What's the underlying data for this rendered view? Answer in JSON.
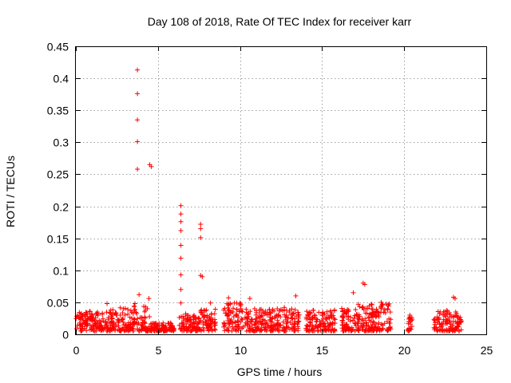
{
  "chart_data": {
    "type": "scatter",
    "title": "Day 108 of 2018, Rate Of TEC Index for receiver karr",
    "xlabel": "GPS time / hours",
    "ylabel": "ROTI / TECUs",
    "xlim": [
      0,
      25
    ],
    "ylim": [
      0,
      0.45
    ],
    "xticks": [
      0,
      5,
      10,
      15,
      20,
      25
    ],
    "xtick_labels": [
      "0",
      "5",
      "10",
      "15",
      "20",
      "25"
    ],
    "yticks": [
      0,
      0.05,
      0.1,
      0.15,
      0.2,
      0.25,
      0.3,
      0.35,
      0.4,
      0.45
    ],
    "ytick_labels": [
      "0",
      "0.05",
      "0.1",
      "0.15",
      "0.2",
      "0.25",
      "0.3",
      "0.35",
      "0.4",
      "0.45"
    ],
    "grid": true,
    "marker": "+",
    "color": "#ff0000",
    "series": [
      {
        "name": "ROTI",
        "segments": [
          [
            0.0,
            2.0,
            0.036
          ],
          [
            2.0,
            3.5,
            0.042
          ],
          [
            3.5,
            4.6,
            0.045
          ],
          [
            4.6,
            6.0,
            0.018
          ],
          [
            6.3,
            7.6,
            0.032
          ],
          [
            7.6,
            8.5,
            0.04
          ],
          [
            9.0,
            10.2,
            0.05
          ],
          [
            10.3,
            13.6,
            0.04
          ],
          [
            14.0,
            15.8,
            0.038
          ],
          [
            16.2,
            17.2,
            0.042
          ],
          [
            17.2,
            19.2,
            0.048
          ],
          [
            20.2,
            20.5,
            0.03
          ],
          [
            21.8,
            22.8,
            0.038
          ],
          [
            22.8,
            23.5,
            0.036
          ]
        ],
        "notable_points": [
          [
            3.75,
            0.413
          ],
          [
            3.75,
            0.376
          ],
          [
            3.75,
            0.335
          ],
          [
            3.75,
            0.301
          ],
          [
            3.75,
            0.258
          ],
          [
            4.5,
            0.265
          ],
          [
            4.6,
            0.262
          ],
          [
            3.85,
            0.062
          ],
          [
            4.45,
            0.056
          ],
          [
            3.6,
            0.048
          ],
          [
            6.4,
            0.201
          ],
          [
            6.4,
            0.188
          ],
          [
            6.4,
            0.176
          ],
          [
            6.4,
            0.162
          ],
          [
            6.4,
            0.139
          ],
          [
            6.4,
            0.119
          ],
          [
            6.4,
            0.093
          ],
          [
            6.4,
            0.07
          ],
          [
            6.4,
            0.049
          ],
          [
            7.6,
            0.172
          ],
          [
            7.6,
            0.165
          ],
          [
            7.6,
            0.151
          ],
          [
            7.6,
            0.092
          ],
          [
            7.7,
            0.09
          ],
          [
            9.3,
            0.057
          ],
          [
            10.6,
            0.056
          ],
          [
            13.4,
            0.06
          ],
          [
            16.9,
            0.065
          ],
          [
            17.5,
            0.08
          ],
          [
            17.6,
            0.078
          ],
          [
            23.0,
            0.058
          ],
          [
            23.1,
            0.056
          ],
          [
            12.7,
            0.042
          ],
          [
            8.2,
            0.049
          ],
          [
            1.9,
            0.048
          ],
          [
            18.6,
            0.05
          ]
        ]
      }
    ]
  }
}
